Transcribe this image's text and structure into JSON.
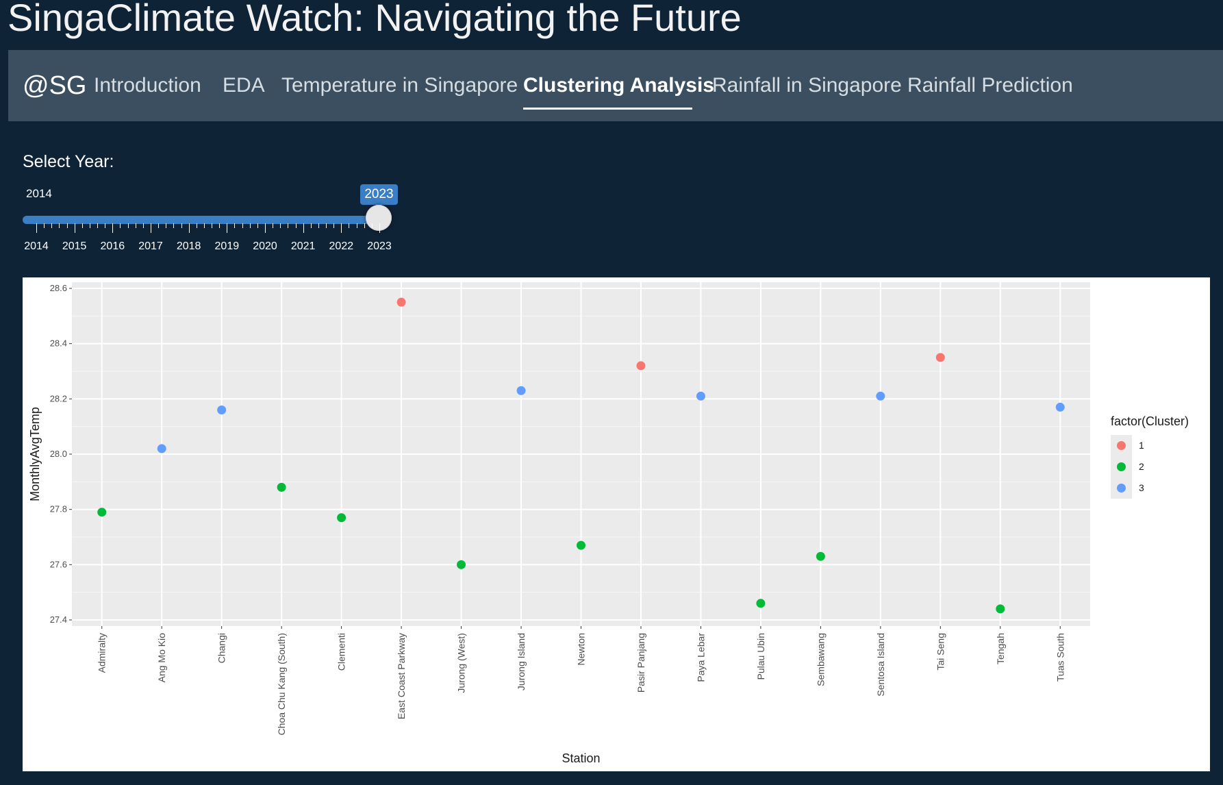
{
  "app": {
    "title": "SingaClimate Watch: Navigating the Future"
  },
  "navbar": {
    "brand": "@SG",
    "tabs": [
      {
        "label": "Introduction",
        "active": false
      },
      {
        "label": "EDA",
        "active": false
      },
      {
        "label": "Temperature in Singapore",
        "active": false
      },
      {
        "label": "Clustering Analysis",
        "active": true
      },
      {
        "label": "Rainfall in Singapore",
        "active": false
      },
      {
        "label": "Rainfall Prediction",
        "active": false
      }
    ]
  },
  "year_slider": {
    "label": "Select Year:",
    "min_label": "2014",
    "value": "2023",
    "years": [
      "2014",
      "2015",
      "2016",
      "2017",
      "2018",
      "2019",
      "2020",
      "2021",
      "2022",
      "2023"
    ]
  },
  "chart_data": {
    "type": "scatter",
    "title": "",
    "xlabel": "Station",
    "ylabel": "MonthlyAvgTemp",
    "ylim": [
      27.4,
      28.6
    ],
    "yticks": [
      "27.4",
      "27.6",
      "27.8",
      "28.0",
      "28.2",
      "28.4",
      "28.6"
    ],
    "grid": true,
    "legend": {
      "title": "factor(Cluster)",
      "placement": "right"
    },
    "cluster_colors": {
      "1": "#f8766d",
      "2": "#00ba38",
      "3": "#619cff"
    },
    "categories": [
      "Admiralty",
      "Ang Mo Kio",
      "Changi",
      "Choa Chu Kang (South)",
      "Clementi",
      "East Coast Parkway",
      "Jurong (West)",
      "Jurong Island",
      "Newton",
      "Pasir Panjang",
      "Paya Lebar",
      "Pulau Ubin",
      "Sembawang",
      "Sentosa Island",
      "Tai Seng",
      "Tengah",
      "Tuas South"
    ],
    "values": [
      27.79,
      28.02,
      28.16,
      27.88,
      27.77,
      28.55,
      27.6,
      28.23,
      27.67,
      28.32,
      28.21,
      27.46,
      27.63,
      28.21,
      28.35,
      27.44,
      28.17
    ],
    "clusters": [
      "2",
      "3",
      "3",
      "2",
      "2",
      "1",
      "2",
      "3",
      "2",
      "1",
      "3",
      "2",
      "2",
      "3",
      "1",
      "2",
      "3"
    ],
    "series": [
      {
        "name": "1"
      },
      {
        "name": "2"
      },
      {
        "name": "3"
      }
    ]
  }
}
